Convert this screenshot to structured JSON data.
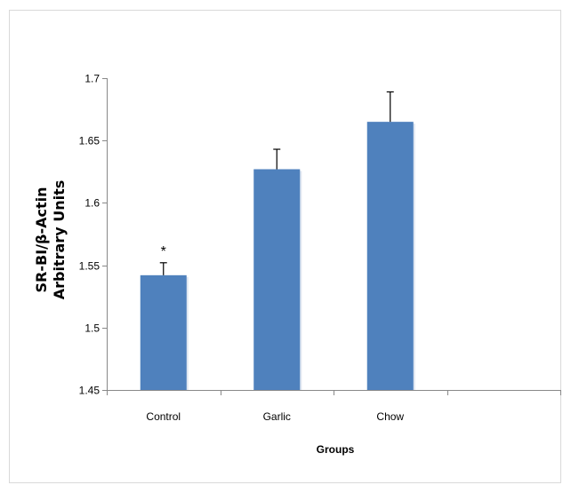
{
  "chart_data": {
    "type": "bar",
    "categories": [
      "Control",
      "Garlic",
      "Chow"
    ],
    "extra_category_slots": 1,
    "series": [
      {
        "values": [
          1.542,
          1.627,
          1.665
        ],
        "error": [
          0.01,
          0.016,
          0.024
        ],
        "color": "#4f81bd"
      }
    ],
    "annotations": [
      {
        "category": "Control",
        "text": "*"
      }
    ],
    "title": "",
    "xlabel": "Groups",
    "ylabel_line1": "SR-BI/β-Actin",
    "ylabel_line2": "Arbitrary Units",
    "ylim": [
      1.45,
      1.7
    ],
    "yticks": [
      "1.45",
      "1.5",
      "1.55",
      "1.6",
      "1.65",
      "1.7"
    ],
    "grid": false,
    "legend": "none"
  },
  "colors": {
    "bar": "#4f81bd",
    "axis": "#888888",
    "text": "#000000"
  }
}
